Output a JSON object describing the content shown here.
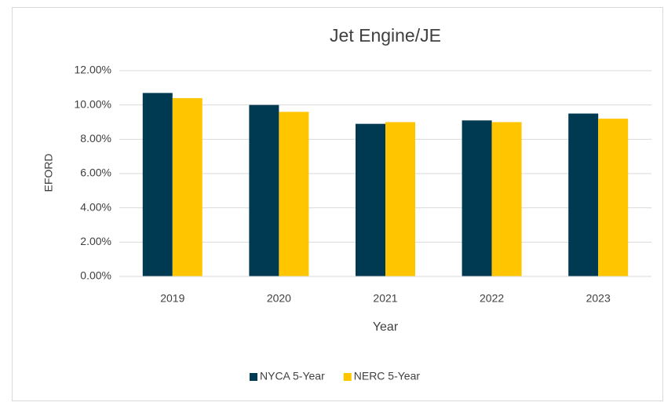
{
  "chart_data": {
    "type": "bar",
    "title": "Jet Engine/JE",
    "x_label": "Year",
    "y_label": "EFORD",
    "categories": [
      "2019",
      "2020",
      "2021",
      "2022",
      "2023"
    ],
    "series": [
      {
        "name": "NYCA 5-Year",
        "color": "#003a52",
        "values": [
          10.7,
          10.0,
          8.9,
          9.1,
          9.5
        ]
      },
      {
        "name": "NERC 5-Year",
        "color": "#ffc600",
        "values": [
          10.4,
          9.6,
          9.0,
          9.0,
          9.2
        ]
      }
    ],
    "ylim": [
      0,
      12
    ],
    "yticks": [
      {
        "value": 0,
        "label": "0.00%"
      },
      {
        "value": 2,
        "label": "2.00%"
      },
      {
        "value": 4,
        "label": "4.00%"
      },
      {
        "value": 6,
        "label": "6.00%"
      },
      {
        "value": 8,
        "label": "8.00%"
      },
      {
        "value": 10,
        "label": "10.00%"
      },
      {
        "value": 12,
        "label": "12.00%"
      }
    ],
    "grid": true,
    "legend": "bottom"
  }
}
